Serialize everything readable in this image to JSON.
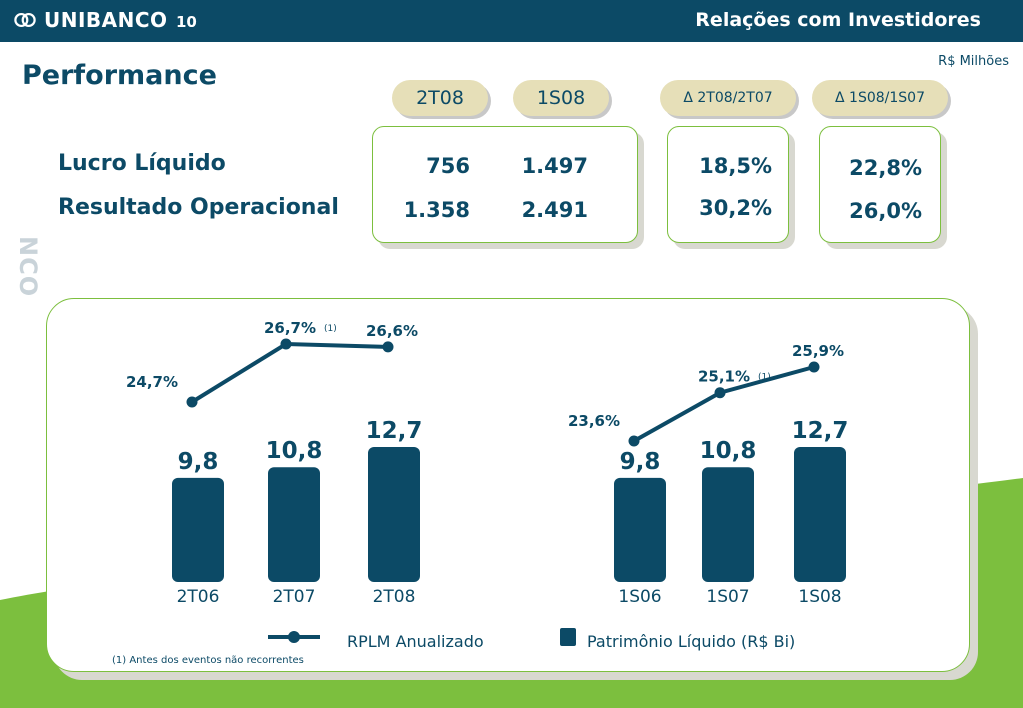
{
  "header": {
    "brand": "UNIBANCO",
    "page_number": "10",
    "section_title": "Relações com Investidores"
  },
  "units_note": "R$ Milhões",
  "page_title": "Performance",
  "side_mark": "NCO",
  "periods": {
    "p1": "2T08",
    "p2": "1S08",
    "d1": "Δ 2T08/2T07",
    "d2": "Δ 1S08/1S07"
  },
  "rows": [
    {
      "label": "Lucro Líquido",
      "v1": "756",
      "v2": "1.497",
      "d1": "18,5%",
      "d2": "22,8%"
    },
    {
      "label": "Resultado Operacional",
      "v1": "1.358",
      "v2": "2.491",
      "d1": "30,2%",
      "d2": "26,0%"
    }
  ],
  "colors": {
    "navy": "#0c4a66",
    "green": "#7cbf3e",
    "pill": "#e6dfb8"
  },
  "chart_data": [
    {
      "type": "bar",
      "categories": [
        "2T06",
        "2T07",
        "2T08"
      ],
      "series": [
        {
          "name": "Patrimônio Líquido (R$ Bi)",
          "kind": "bar",
          "values": [
            9.8,
            10.8,
            12.7
          ],
          "labels": [
            "9,8",
            "10,8",
            "12,7"
          ]
        },
        {
          "name": "RPLM Anualizado",
          "kind": "line",
          "values": [
            24.7,
            26.7,
            26.6
          ],
          "labels": [
            "24,7%",
            "26,7%",
            "26,6%"
          ],
          "footnote_marks": [
            "",
            "(1)",
            ""
          ]
        }
      ]
    },
    {
      "type": "bar",
      "categories": [
        "1S06",
        "1S07",
        "1S08"
      ],
      "series": [
        {
          "name": "Patrimônio Líquido (R$ Bi)",
          "kind": "bar",
          "values": [
            9.8,
            10.8,
            12.7
          ],
          "labels": [
            "9,8",
            "10,8",
            "12,7"
          ]
        },
        {
          "name": "RPLM Anualizado",
          "kind": "line",
          "values": [
            23.6,
            25.1,
            25.9
          ],
          "labels": [
            "23,6%",
            "25,1%",
            "25,9%"
          ],
          "footnote_marks": [
            "",
            "(1)",
            ""
          ]
        }
      ]
    }
  ],
  "legend": {
    "line_label": "RPLM Anualizado",
    "bar_label": "Patrimônio Líquido (R$ Bi)"
  },
  "footnote": "(1) Antes dos eventos não recorrentes"
}
